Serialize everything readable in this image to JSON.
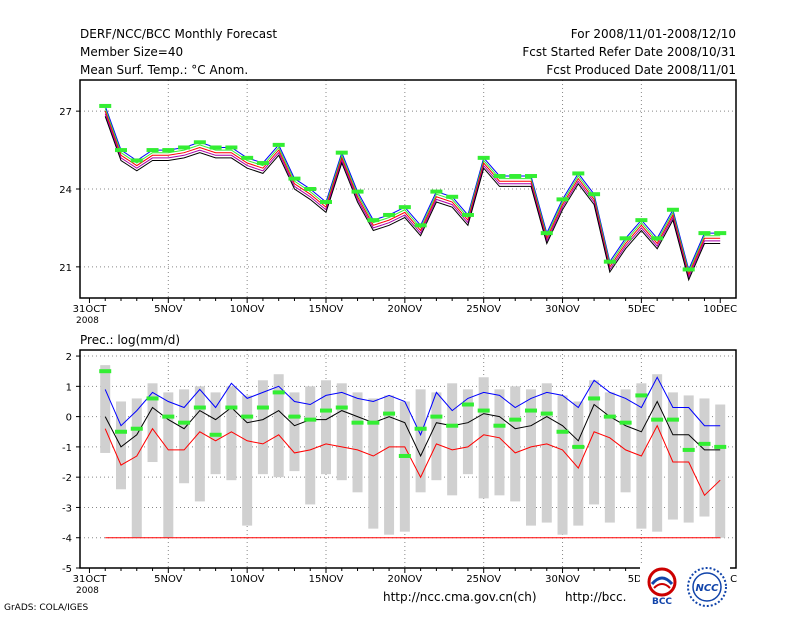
{
  "header": {
    "title": "DERF/NCC/BCC Monthly Forecast",
    "member_size": "Member Size=40",
    "variable": "Mean Surf. Temp.: °C Anom.",
    "period": "For 2008/11/01-2008/12/10",
    "start_date": "Fcst Started Refer Date 2008/10/31",
    "produced_date": "Fcst Produced Date 2008/11/01"
  },
  "footer": {
    "credit": "GrADS: COLA/IGES",
    "url1": "http://ncc.cma.gov.cn(ch)",
    "url2": "http://bcc.",
    "logo_bcc": "BCC",
    "logo_ncc": "NCC"
  },
  "colors": {
    "blue": "#0000ff",
    "red": "#ff0000",
    "green": "#33ee33",
    "gray": "#d0d0d0",
    "black": "#000000",
    "purple": "#aa00aa"
  },
  "chart_data": [
    {
      "type": "line",
      "title": "Mean Surf. Temp.: °C Anom.",
      "x_tick_labels": [
        "31OCT",
        "5NOV",
        "10NOV",
        "15NOV",
        "20NOV",
        "25NOV",
        "30NOV",
        "5DEC",
        "10DEC"
      ],
      "x_tick_days": [
        0,
        5,
        10,
        15,
        20,
        25,
        30,
        35,
        40
      ],
      "x_sublabel": "2008",
      "ylim": [
        19.8,
        28.2
      ],
      "y_ticks": [
        21,
        24,
        27
      ],
      "days": [
        1,
        2,
        3,
        4,
        5,
        6,
        7,
        8,
        9,
        10,
        11,
        12,
        13,
        14,
        15,
        16,
        17,
        18,
        19,
        20,
        21,
        22,
        23,
        24,
        25,
        26,
        27,
        28,
        29,
        30,
        31,
        32,
        33,
        34,
        35,
        36,
        37,
        38,
        39,
        40
      ],
      "series": [
        {
          "name": "Upper",
          "color": "blue",
          "values": [
            27.2,
            25.5,
            25.1,
            25.5,
            25.5,
            25.6,
            25.8,
            25.6,
            25.6,
            25.2,
            25.0,
            25.7,
            24.4,
            24.0,
            23.5,
            25.4,
            23.9,
            22.8,
            23.0,
            23.3,
            22.6,
            23.9,
            23.7,
            23.0,
            25.2,
            24.5,
            24.5,
            24.5,
            22.3,
            23.6,
            24.6,
            23.8,
            21.2,
            22.1,
            22.8,
            22.1,
            23.2,
            20.9,
            22.3,
            22.3
          ]
        },
        {
          "name": "Member 1",
          "color": "green",
          "values": [
            27.1,
            25.4,
            25.0,
            25.4,
            25.4,
            25.5,
            25.7,
            25.5,
            25.5,
            25.1,
            24.9,
            25.6,
            24.3,
            23.9,
            23.4,
            25.3,
            23.8,
            22.7,
            22.9,
            23.2,
            22.5,
            23.8,
            23.6,
            22.9,
            25.1,
            24.4,
            24.4,
            24.4,
            22.2,
            23.5,
            24.5,
            23.7,
            21.1,
            22.0,
            22.7,
            22.0,
            23.1,
            20.8,
            22.2,
            22.2
          ]
        },
        {
          "name": "Member 2",
          "color": "red",
          "values": [
            27.0,
            25.3,
            24.9,
            25.3,
            25.3,
            25.4,
            25.6,
            25.4,
            25.4,
            25.0,
            24.8,
            25.5,
            24.2,
            23.8,
            23.3,
            25.2,
            23.7,
            22.6,
            22.8,
            23.1,
            22.4,
            23.7,
            23.5,
            22.8,
            25.0,
            24.3,
            24.3,
            24.3,
            22.1,
            23.4,
            24.4,
            23.6,
            21.0,
            21.9,
            22.6,
            21.9,
            23.0,
            20.7,
            22.1,
            22.1
          ]
        },
        {
          "name": "Member 3",
          "color": "purple",
          "values": [
            26.9,
            25.2,
            24.8,
            25.2,
            25.2,
            25.3,
            25.5,
            25.3,
            25.3,
            24.9,
            24.7,
            25.4,
            24.1,
            23.7,
            23.2,
            25.1,
            23.6,
            22.5,
            22.7,
            23.0,
            22.3,
            23.6,
            23.4,
            22.7,
            24.9,
            24.2,
            24.2,
            24.2,
            22.0,
            23.3,
            24.3,
            23.5,
            20.9,
            21.8,
            22.5,
            21.8,
            22.9,
            20.6,
            22.0,
            22.0
          ]
        },
        {
          "name": "Lower",
          "color": "black",
          "values": [
            26.8,
            25.1,
            24.7,
            25.1,
            25.1,
            25.2,
            25.4,
            25.2,
            25.2,
            24.8,
            24.6,
            25.3,
            24.0,
            23.6,
            23.1,
            25.0,
            23.5,
            22.4,
            22.6,
            22.9,
            22.2,
            23.5,
            23.3,
            22.6,
            24.8,
            24.1,
            24.1,
            24.1,
            21.9,
            23.2,
            24.2,
            23.4,
            20.8,
            21.7,
            22.4,
            21.7,
            22.8,
            20.5,
            21.9,
            21.9
          ]
        }
      ],
      "markers": {
        "name": "Observed/Climatology",
        "color": "green",
        "values": [
          27.2,
          25.5,
          25.1,
          25.5,
          25.5,
          25.6,
          25.8,
          25.6,
          25.6,
          25.2,
          25.0,
          25.7,
          24.4,
          24.0,
          23.5,
          25.4,
          23.9,
          22.8,
          23.0,
          23.3,
          22.6,
          23.9,
          23.7,
          23.0,
          25.2,
          24.5,
          24.5,
          24.5,
          22.3,
          23.6,
          24.6,
          23.8,
          21.2,
          22.1,
          22.8,
          22.1,
          23.2,
          20.9,
          22.3,
          22.3
        ]
      }
    },
    {
      "type": "line",
      "title": "Prec.: log(mm/d)",
      "x_tick_labels": [
        "31OCT",
        "5NOV",
        "10NOV",
        "15NOV",
        "20NOV",
        "25NOV",
        "30NOV",
        "5DEC",
        "10DEC"
      ],
      "x_tick_days": [
        0,
        5,
        10,
        15,
        20,
        25,
        30,
        35,
        40
      ],
      "x_sublabel": "2008",
      "ylim": [
        -5,
        2.2
      ],
      "y_ticks": [
        -5,
        -4,
        -3,
        -2,
        -1,
        0,
        1,
        2
      ],
      "days": [
        1,
        2,
        3,
        4,
        5,
        6,
        7,
        8,
        9,
        10,
        11,
        12,
        13,
        14,
        15,
        16,
        17,
        18,
        19,
        20,
        21,
        22,
        23,
        24,
        25,
        26,
        27,
        28,
        29,
        30,
        31,
        32,
        33,
        34,
        35,
        36,
        37,
        38,
        39,
        40
      ],
      "range_bars": {
        "color": "gray",
        "high": [
          1.7,
          0.5,
          0.6,
          1.1,
          0.8,
          0.9,
          1.0,
          0.8,
          1.0,
          0.7,
          1.2,
          1.4,
          0.8,
          1.0,
          1.2,
          1.1,
          0.8,
          0.6,
          0.7,
          0.5,
          0.9,
          0.8,
          1.1,
          0.9,
          1.3,
          0.9,
          1.0,
          0.9,
          1.1,
          0.7,
          0.5,
          1.2,
          0.8,
          0.9,
          1.1,
          1.4,
          0.8,
          0.7,
          0.6,
          0.4
        ],
        "low": [
          -1.2,
          -2.4,
          -4.0,
          -1.5,
          -4.0,
          -2.2,
          -2.8,
          -1.9,
          -2.1,
          -3.6,
          -1.9,
          -2.0,
          -1.8,
          -2.9,
          -1.9,
          -2.1,
          -2.5,
          -3.7,
          -3.9,
          -3.8,
          -2.5,
          -2.1,
          -2.6,
          -1.9,
          -2.7,
          -2.6,
          -2.8,
          -3.6,
          -3.5,
          -3.9,
          -3.6,
          -2.9,
          -3.5,
          -2.5,
          -3.7,
          -3.8,
          -3.4,
          -3.5,
          -3.3,
          -4.0
        ]
      },
      "series": [
        {
          "name": "Upper",
          "color": "blue",
          "values": [
            0.9,
            -0.3,
            0.2,
            0.8,
            0.5,
            0.3,
            0.9,
            0.3,
            1.1,
            0.6,
            0.8,
            1.0,
            0.5,
            0.4,
            0.7,
            0.8,
            0.6,
            0.5,
            0.7,
            0.5,
            -0.6,
            0.8,
            0.2,
            0.6,
            0.8,
            0.7,
            0.3,
            0.6,
            0.8,
            0.7,
            0.3,
            1.2,
            0.8,
            0.6,
            0.3,
            1.3,
            0.3,
            0.3,
            -0.3,
            -0.3
          ]
        },
        {
          "name": "Ensemble mean",
          "color": "black",
          "values": [
            0.0,
            -1.0,
            -0.6,
            0.3,
            -0.1,
            -0.4,
            0.2,
            -0.1,
            0.3,
            -0.2,
            -0.1,
            0.2,
            -0.3,
            -0.1,
            -0.1,
            0.2,
            0.0,
            -0.2,
            0.0,
            -0.2,
            -1.3,
            -0.2,
            -0.3,
            -0.2,
            0.1,
            0.0,
            -0.4,
            -0.3,
            0.0,
            -0.3,
            -0.8,
            0.4,
            0.0,
            -0.3,
            -0.5,
            0.5,
            -0.6,
            -0.6,
            -1.1,
            -1.1
          ]
        },
        {
          "name": "Lower",
          "color": "red",
          "values": [
            -0.4,
            -1.6,
            -1.3,
            -0.4,
            -1.1,
            -1.1,
            -0.5,
            -0.8,
            -0.5,
            -0.8,
            -0.9,
            -0.6,
            -1.2,
            -1.1,
            -0.9,
            -1.0,
            -1.1,
            -1.3,
            -1.0,
            -1.0,
            -2.0,
            -0.9,
            -1.1,
            -1.0,
            -0.6,
            -0.7,
            -1.2,
            -1.0,
            -0.9,
            -1.1,
            -1.7,
            -0.5,
            -0.7,
            -1.1,
            -1.3,
            -0.3,
            -1.5,
            -1.5,
            -2.6,
            -2.1
          ]
        }
      ],
      "markers": {
        "name": "Observed/Climatology",
        "color": "green",
        "values": [
          1.5,
          -0.5,
          -0.4,
          0.6,
          0.0,
          -0.2,
          0.3,
          -0.6,
          0.3,
          0.0,
          0.3,
          0.8,
          0.0,
          -0.1,
          0.2,
          0.3,
          -0.2,
          -0.2,
          0.1,
          -1.3,
          -0.4,
          0.0,
          -0.3,
          0.4,
          0.2,
          -0.3,
          -0.1,
          0.2,
          0.1,
          -0.5,
          -1.0,
          0.6,
          0.0,
          -0.2,
          0.7,
          -0.1,
          -0.1,
          -1.1,
          -0.9,
          -1.0
        ]
      },
      "baseline": {
        "value": -4,
        "color": "red"
      }
    }
  ]
}
